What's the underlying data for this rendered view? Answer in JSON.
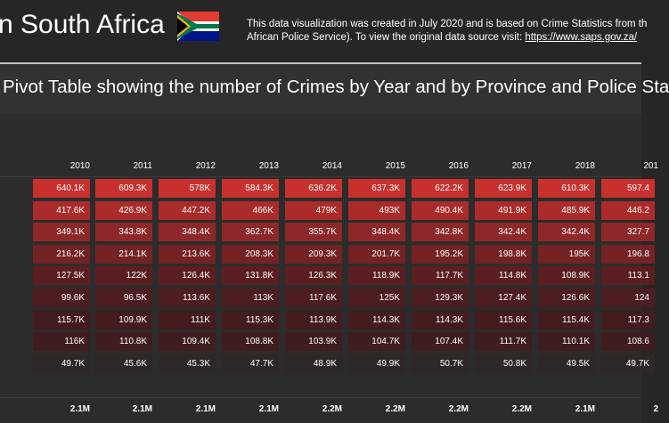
{
  "header": {
    "title": "n South Africa",
    "description_line1": "This data visualization was created in July 2020 and is based on Crime Statistics from th",
    "description_line2_prefix": "African Police Service). To view the original data source visit: ",
    "link_text": "https://www.saps.gov.za/",
    "flag_icon": "south-africa-flag-icon"
  },
  "pivot": {
    "title": "Pivot Table showing the number of Crimes by Year and by Province and Police Sta",
    "years": [
      "2010",
      "2011",
      "2012",
      "2013",
      "2014",
      "2015",
      "2016",
      "2017",
      "2018",
      "201"
    ],
    "rows": [
      [
        "640.1K",
        "609.3K",
        "578K",
        "584.3K",
        "636.2K",
        "637.3K",
        "622.2K",
        "623.9K",
        "610.3K",
        "597.4"
      ],
      [
        "417.6K",
        "426.9K",
        "447.2K",
        "466K",
        "479K",
        "493K",
        "490.4K",
        "491.9K",
        "485.9K",
        "446.2"
      ],
      [
        "349.1K",
        "343.8K",
        "348.4K",
        "362.7K",
        "355.7K",
        "348.4K",
        "342.8K",
        "342.4K",
        "342.4K",
        "327.7"
      ],
      [
        "216.2K",
        "214.1K",
        "213.6K",
        "208.3K",
        "209.3K",
        "201.7K",
        "195.2K",
        "198.8K",
        "195K",
        "196.8"
      ],
      [
        "127.5K",
        "122K",
        "126.4K",
        "131.8K",
        "126.3K",
        "118.9K",
        "117.7K",
        "114.8K",
        "108.9K",
        "113.1"
      ],
      [
        "99.6K",
        "96.5K",
        "113.6K",
        "113K",
        "117.6K",
        "125K",
        "129.3K",
        "127.4K",
        "126.6K",
        "124"
      ],
      [
        "115.7K",
        "109.9K",
        "111K",
        "115.3K",
        "113.9K",
        "114.3K",
        "114.3K",
        "115.6K",
        "115.4K",
        "117.3"
      ],
      [
        "116K",
        "110.8K",
        "109.4K",
        "108.8K",
        "103.9K",
        "104.7K",
        "107.4K",
        "111.7K",
        "110.1K",
        "108.6"
      ],
      [
        "49.7K",
        "45.6K",
        "45.3K",
        "47.7K",
        "48.9K",
        "49.9K",
        "50.7K",
        "50.8K",
        "49.5K",
        "49.7K"
      ]
    ],
    "row_colors": [
      "#c8302e",
      "#ab2b2a",
      "#8e2727",
      "#742224",
      "#5c1f21",
      "#4d1d1f",
      "#451c1e",
      "#3f1c1d",
      "#2e2828"
    ],
    "totals": [
      "2.1M",
      "2.1M",
      "2.1M",
      "2.1M",
      "2.2M",
      "2.2M",
      "2.2M",
      "2.2M",
      "2.1M",
      "2"
    ]
  }
}
